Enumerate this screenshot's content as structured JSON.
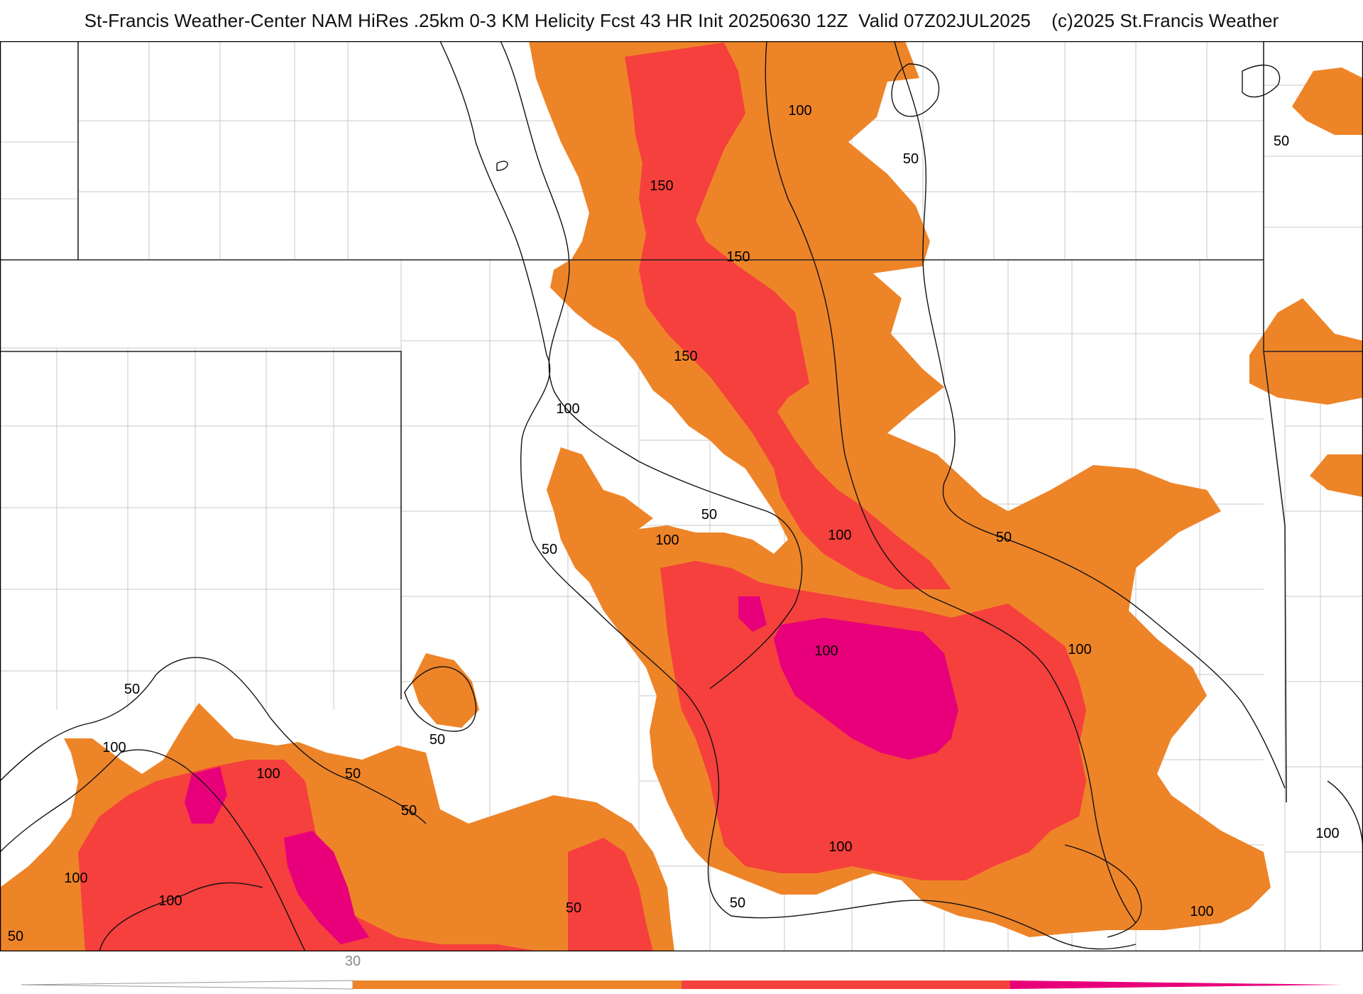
{
  "header": {
    "title": "St-Francis Weather-Center NAM HiRes .25km 0-3 KM Helicity Fcst 43 HR Init 20250630 12Z  Valid 07Z02JUL2025    (c)2025 St.Francis Weather"
  },
  "map": {
    "colors": {
      "orange": "#ee8428",
      "red": "#f5403d",
      "magenta": "#e8007a",
      "contour": "#111111",
      "county": "#c8c8c8",
      "state": "#222222"
    },
    "contour_labels": [
      "100",
      "50",
      "150",
      "150",
      "150",
      "100",
      "50",
      "100",
      "50",
      "100",
      "50",
      "100",
      "100",
      "50",
      "100",
      "100",
      "50",
      "50",
      "100",
      "100",
      "100",
      "50",
      "50",
      "100",
      "100",
      "50",
      "50",
      "50"
    ]
  },
  "legend": {
    "tick": "30",
    "colors": [
      "#ee8428",
      "#f5403d",
      "#e8007a"
    ]
  }
}
